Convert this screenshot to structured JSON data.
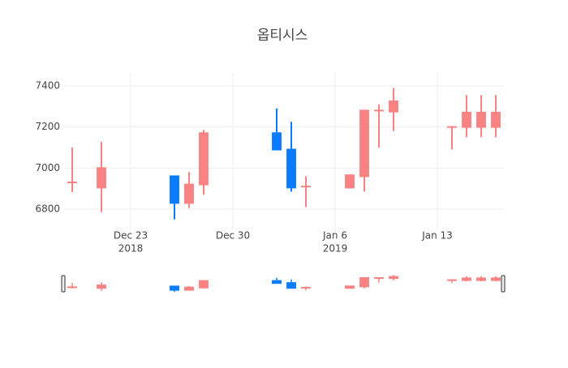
{
  "chart_data": {
    "type": "candlestick",
    "title": "옵티시스",
    "x": [
      "2018-12-19",
      "2018-12-21",
      "2018-12-26",
      "2018-12-27",
      "2018-12-28",
      "2019-01-02",
      "2019-01-03",
      "2019-01-04",
      "2019-01-07",
      "2019-01-08",
      "2019-01-09",
      "2019-01-10",
      "2019-01-14",
      "2019-01-15",
      "2019-01-16",
      "2019-01-17"
    ],
    "open": [
      6930,
      6905,
      6960,
      6830,
      6920,
      7170,
      7090,
      6910,
      6905,
      6960,
      7280,
      7275,
      7200,
      7200,
      7200,
      7200
    ],
    "high": [
      7100,
      7128,
      6960,
      6980,
      7185,
      7290,
      7225,
      6960,
      6965,
      7280,
      7310,
      7390,
      7200,
      7355,
      7355,
      7355
    ],
    "low": [
      6883,
      6785,
      6750,
      6805,
      6870,
      7090,
      6885,
      6810,
      6900,
      6885,
      7100,
      7180,
      7090,
      7150,
      7150,
      7150
    ],
    "close": [
      6930,
      7000,
      6830,
      6920,
      7170,
      7090,
      6905,
      6910,
      6965,
      7280,
      7280,
      7325,
      7200,
      7270,
      7270,
      7270
    ],
    "increasing_color": "#fa8282",
    "decreasing_color": "#0a7cff",
    "xlim": [
      "2018-12-18T12:00",
      "2019-01-17T12:00"
    ],
    "xticks": [
      {
        "value": "2018-12-23",
        "label": "Dec 23",
        "sublabel": "2018"
      },
      {
        "value": "2018-12-30",
        "label": "Dec 30"
      },
      {
        "value": "2019-01-06",
        "label": "Jan 6",
        "sublabel": "2019"
      },
      {
        "value": "2019-01-13",
        "label": "Jan 13"
      }
    ],
    "ylim": [
      6695,
      7465
    ],
    "yticks": [
      6800,
      7000,
      7200,
      7400
    ],
    "grid": true,
    "rangeslider": true
  }
}
